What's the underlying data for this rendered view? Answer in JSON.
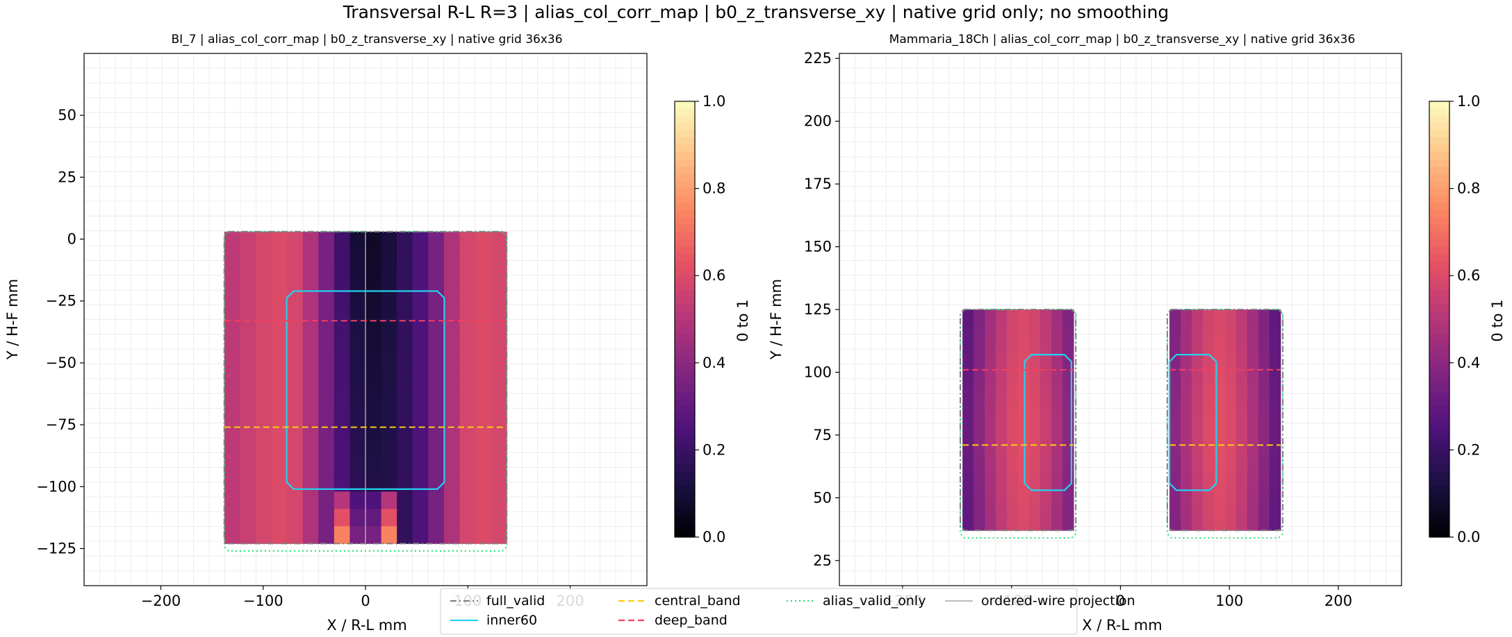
{
  "figure": {
    "suptitle": "Transversal R-L R=3 | alias_col_corr_map | b0_z_transverse_xy | native grid only; no smoothing"
  },
  "legend": {
    "entries": [
      {
        "label": "full_valid",
        "color": "#808080",
        "style": "dashdot"
      },
      {
        "label": "inner60",
        "color": "#22d3ee",
        "style": "solid"
      },
      {
        "label": "central_band",
        "color": "#facc15",
        "style": "dashed"
      },
      {
        "label": "deep_band",
        "color": "#f43f5e",
        "style": "dashed"
      },
      {
        "label": "alias_valid_only",
        "color": "#22e07a",
        "style": "dotted"
      },
      {
        "label": "ordered-wire projection",
        "color": "#c0c0c0",
        "style": "solid"
      }
    ]
  },
  "chart_data": [
    {
      "type": "heatmap",
      "title": "BI_7 | alias_col_corr_map | b0_z_transverse_xy | native grid 36x36",
      "xlabel": "X / R-L mm",
      "ylabel": "Y / H-F mm",
      "xlim": [
        -275,
        275
      ],
      "ylim": [
        -140,
        75
      ],
      "xticks": [
        -200,
        -100,
        0,
        100,
        200
      ],
      "yticks": [
        -125,
        -100,
        -75,
        -50,
        -25,
        0,
        25,
        50
      ],
      "grid": true,
      "colormap": "magma",
      "colorbar": {
        "label": "0 to 1",
        "range": [
          0,
          1
        ],
        "ticks": [
          0.0,
          0.2,
          0.4,
          0.6,
          0.8,
          1.0
        ]
      },
      "data_extent": {
        "x": [
          -138,
          138
        ],
        "y": [
          -123,
          3
        ]
      },
      "column_values": [
        0.52,
        0.55,
        0.58,
        0.6,
        0.58,
        0.48,
        0.35,
        0.25,
        0.18,
        0.15,
        0.15,
        0.18,
        0.25,
        0.35,
        0.48,
        0.58,
        0.6,
        0.58
      ],
      "regions": {
        "full_valid": {
          "x": [
            -138,
            138
          ],
          "y": [
            -123,
            3
          ]
        },
        "inner60": {
          "x": [
            -77,
            77
          ],
          "y": [
            -101,
            -21
          ]
        },
        "central_band": {
          "y": -76
        },
        "deep_band": {
          "y": -33
        },
        "alias_valid_only": {
          "x": [
            -138,
            138
          ],
          "y": [
            -126,
            3
          ]
        }
      }
    },
    {
      "type": "heatmap",
      "title": "Mammaria_18Ch | alias_col_corr_map | b0_z_transverse_xy | native grid 36x36",
      "xlabel": "X / R-L mm",
      "ylabel": "Y / H-F mm",
      "xlim": [
        -258,
        258
      ],
      "ylim": [
        15,
        227
      ],
      "xticks": [
        -200,
        -100,
        0,
        100,
        200
      ],
      "yticks": [
        25,
        50,
        75,
        100,
        125,
        150,
        175,
        200,
        225
      ],
      "grid": true,
      "colormap": "magma",
      "colorbar": {
        "label": "0 to 1",
        "range": [
          0,
          1
        ],
        "ticks": [
          0.0,
          0.2,
          0.4,
          0.6,
          0.8,
          1.0
        ]
      },
      "blocks": [
        {
          "x": [
            -145,
            -43
          ],
          "y": [
            37,
            125
          ],
          "column_values": [
            0.32,
            0.4,
            0.48,
            0.55,
            0.6,
            0.62,
            0.6,
            0.55,
            0.48,
            0.4
          ],
          "inner60": {
            "x": [
              -88,
              -45
            ],
            "y": [
              53,
              107
            ]
          }
        },
        {
          "x": [
            45,
            147
          ],
          "y": [
            37,
            125
          ],
          "column_values": [
            0.4,
            0.48,
            0.55,
            0.6,
            0.62,
            0.6,
            0.55,
            0.48,
            0.4,
            0.32
          ],
          "inner60": {
            "x": [
              45,
              88
            ],
            "y": [
              53,
              107
            ]
          }
        }
      ],
      "regions": {
        "central_band": {
          "y": 71
        },
        "deep_band": {
          "y": 101
        }
      }
    }
  ]
}
